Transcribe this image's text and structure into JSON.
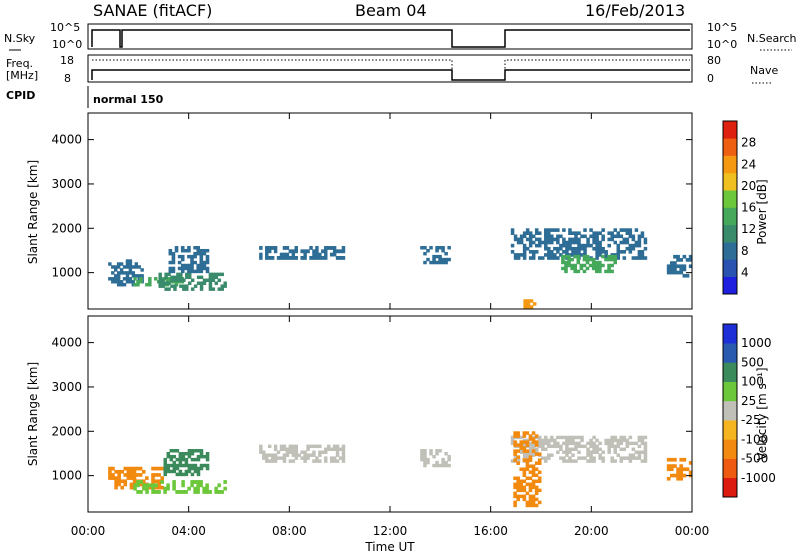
{
  "header": {
    "station": "SANAE (fitACF)",
    "beam": "Beam 04",
    "date": "16/Feb/2013"
  },
  "strips": {
    "nsky_label": "N.Sky",
    "nsky_ticks": [
      "10^5",
      "10^0"
    ],
    "nsearch_label": "N.Search",
    "nsearch_ticks": [
      "10^5",
      "10^0"
    ],
    "freq_label_1": "Freq.",
    "freq_label_2": "[MHz]",
    "freq_ticks": [
      "18",
      "8"
    ],
    "nave_label": "Nave",
    "nave_ticks": [
      "80",
      "0"
    ],
    "cpid_label": "CPID",
    "cpid_value": "normal 150"
  },
  "colors": {
    "power": [
      "#1f1fe0",
      "#2a52b0",
      "#2e6e96",
      "#3a8a6c",
      "#45a85a",
      "#6cc83a",
      "#f0c020",
      "#f59a10",
      "#ee6010",
      "#dd2010"
    ],
    "velocity": [
      "#dd1a10",
      "#ee5a10",
      "#f38a10",
      "#f5b520",
      "#c0c0b8",
      "#6cc83a",
      "#3a8a5c",
      "#2a5ab0",
      "#1f2fd8"
    ]
  },
  "chart_data": [
    {
      "type": "heatmap",
      "panel": "power",
      "ylabel": "Slant Range [km]",
      "xlabel": "",
      "xlim": [
        0,
        24
      ],
      "ylim": [
        180,
        4600
      ],
      "x_ticks": [
        "00:00",
        "04:00",
        "08:00",
        "12:00",
        "16:00",
        "20:00",
        "00:00"
      ],
      "y_ticks": [
        "1000",
        "2000",
        "3000",
        "4000"
      ],
      "colorbar": {
        "label": "Power [dB]",
        "ticks": [
          "4",
          "8",
          "12",
          "16",
          "20",
          "24",
          "28"
        ],
        "range": [
          0,
          30
        ]
      },
      "echo_regions": [
        {
          "t0": 0.8,
          "t1": 2.2,
          "r0": 700,
          "r1": 1300,
          "value_dB": 6
        },
        {
          "t0": 1.8,
          "t1": 3.8,
          "r0": 700,
          "r1": 900,
          "value_dB": 14
        },
        {
          "t0": 2.8,
          "t1": 5.5,
          "r0": 600,
          "r1": 1000,
          "value_dB": 9
        },
        {
          "t0": 3.2,
          "t1": 4.8,
          "r0": 1000,
          "r1": 1600,
          "value_dB": 8
        },
        {
          "t0": 6.8,
          "t1": 10.2,
          "r0": 1300,
          "r1": 1600,
          "value_dB": 6
        },
        {
          "t0": 13.2,
          "t1": 14.4,
          "r0": 1200,
          "r1": 1600,
          "value_dB": 6
        },
        {
          "t0": 16.8,
          "t1": 22.2,
          "r0": 1300,
          "r1": 2000,
          "value_dB": 7
        },
        {
          "t0": 18.8,
          "t1": 21.0,
          "r0": 1000,
          "r1": 1400,
          "value_dB": 12
        },
        {
          "t0": 17.3,
          "t1": 17.8,
          "r0": 200,
          "r1": 400,
          "value_dB": 22
        },
        {
          "t0": 23.0,
          "t1": 24.0,
          "r0": 900,
          "r1": 1400,
          "value_dB": 6
        }
      ]
    },
    {
      "type": "heatmap",
      "panel": "velocity",
      "ylabel": "Slant Range [km]",
      "xlabel": "Time UT",
      "xlim": [
        0,
        24
      ],
      "ylim": [
        180,
        4600
      ],
      "x_ticks": [
        "00:00",
        "04:00",
        "08:00",
        "12:00",
        "16:00",
        "20:00",
        "00:00"
      ],
      "y_ticks": [
        "1000",
        "2000",
        "3000",
        "4000"
      ],
      "colorbar": {
        "label": "Velocity [m s⁻¹]",
        "ticks": [
          "-1000",
          "-500",
          "-100",
          "-25",
          "25",
          "100",
          "500",
          "1000"
        ],
        "range": [
          -1000,
          1000
        ]
      },
      "echo_regions": [
        {
          "t0": 0.8,
          "t1": 3.0,
          "r0": 700,
          "r1": 1200,
          "value_ms": -150
        },
        {
          "t0": 1.8,
          "t1": 5.5,
          "r0": 600,
          "r1": 900,
          "value_ms": 80
        },
        {
          "t0": 3.0,
          "t1": 4.8,
          "r0": 1000,
          "r1": 1600,
          "value_ms": 300
        },
        {
          "t0": 6.8,
          "t1": 10.2,
          "r0": 1300,
          "r1": 1700,
          "value_ms": 0
        },
        {
          "t0": 13.2,
          "t1": 14.4,
          "r0": 1200,
          "r1": 1600,
          "value_ms": 0
        },
        {
          "t0": 16.8,
          "t1": 22.2,
          "r0": 1300,
          "r1": 1900,
          "value_ms": 0
        },
        {
          "t0": 16.9,
          "t1": 18.0,
          "r0": 300,
          "r1": 2000,
          "value_ms": -400
        },
        {
          "t0": 23.0,
          "t1": 24.0,
          "r0": 900,
          "r1": 1400,
          "value_ms": -200
        }
      ]
    }
  ]
}
